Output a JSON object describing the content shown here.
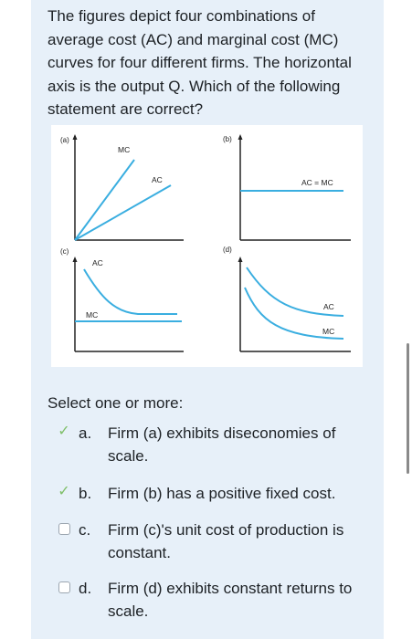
{
  "question": {
    "text": "The figures depict four combinations of average cost (AC) and marginal cost (MC) curves for four different firms. The horizontal axis is the output Q. Which of the following statement are correct?"
  },
  "figure": {
    "panel_a": {
      "label": "(a)",
      "mc": "MC",
      "ac": "AC"
    },
    "panel_b": {
      "label": "(b)",
      "acmc": "AC = MC"
    },
    "panel_c": {
      "label": "(c)",
      "ac": "AC",
      "mc": "MC"
    },
    "panel_d": {
      "label": "(d)",
      "ac": "AC",
      "mc": "MC"
    },
    "colors": {
      "mc_line": "#3aaee0",
      "ac_line": "#3aaee0",
      "axis": "#222222"
    }
  },
  "answer": {
    "select_label": "Select one or more:",
    "options": [
      {
        "letter": "a.",
        "text": "Firm (a) exhibits diseconomies of scale.",
        "marked": true
      },
      {
        "letter": "b.",
        "text": "Firm (b) has a positive fixed cost.",
        "marked": true
      },
      {
        "letter": "c.",
        "text": "Firm (c)'s unit cost of production is constant.",
        "marked": false
      },
      {
        "letter": "d.",
        "text": "Firm (d) exhibits constant returns to scale.",
        "marked": false
      }
    ]
  }
}
